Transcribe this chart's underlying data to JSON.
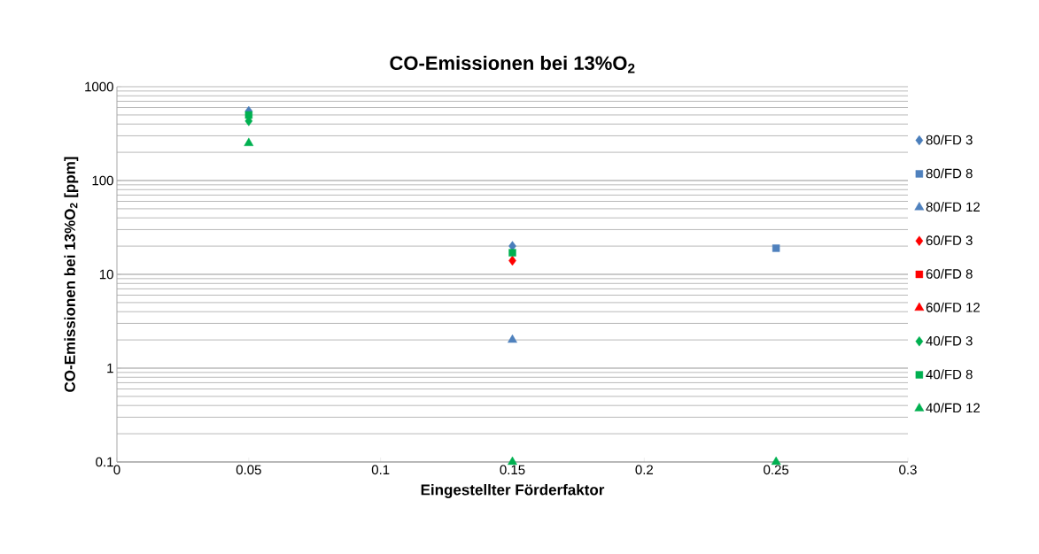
{
  "chart_data": {
    "type": "scatter",
    "title": "CO-Emissionen bei 13%O$_{2}$",
    "xlabel": "Eingestellter Förderfaktor",
    "ylabel": "CO-Emissionen bei 13%O$_{2}$ [ppm]",
    "x": [
      0.05,
      0.15,
      0.25
    ],
    "series": [
      {
        "name": "80/FD 3",
        "color": "#4a7ebb",
        "marker": "diamond",
        "values": [
          550,
          20,
          null
        ]
      },
      {
        "name": "80/FD 8",
        "color": "#4f81bd",
        "marker": "square",
        "values": [
          null,
          null,
          19
        ]
      },
      {
        "name": "80/FD 12",
        "color": "#4f81bd",
        "marker": "triangle",
        "values": [
          null,
          2,
          null
        ]
      },
      {
        "name": "60/FD 3",
        "color": "#ff0000",
        "marker": "diamond",
        "values": [
          null,
          14,
          null
        ]
      },
      {
        "name": "60/FD 8",
        "color": "#ff0000",
        "marker": "square",
        "values": [
          null,
          null,
          null
        ]
      },
      {
        "name": "60/FD 12",
        "color": "#ff0000",
        "marker": "triangle",
        "values": [
          null,
          null,
          null
        ]
      },
      {
        "name": "40/FD 3",
        "color": "#00b050",
        "marker": "diamond",
        "values": [
          430,
          null,
          null
        ]
      },
      {
        "name": "40/FD 8",
        "color": "#00b050",
        "marker": "square",
        "values": [
          500,
          17,
          null
        ]
      },
      {
        "name": "40/FD 12",
        "color": "#00b050",
        "marker": "triangle",
        "values": [
          250,
          0.1,
          0.1
        ]
      }
    ],
    "xlim": [
      0,
      0.3
    ],
    "xticks": [
      0,
      0.05,
      0.1,
      0.15,
      0.2,
      0.25,
      0.3
    ],
    "ylim": [
      0.1,
      1000
    ],
    "yticks": [
      0.1,
      1,
      10,
      100,
      1000
    ],
    "log": "y",
    "grid": "y",
    "legend": "right"
  }
}
